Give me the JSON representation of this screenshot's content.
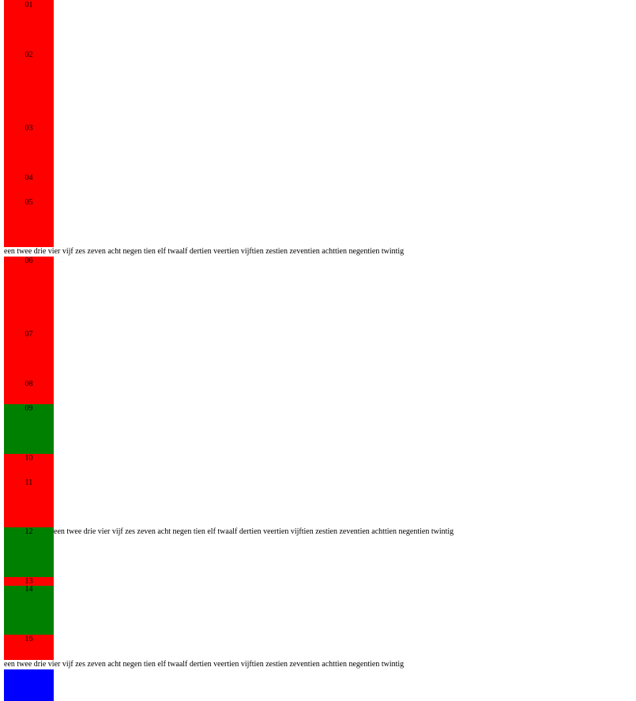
{
  "colors": {
    "red": "#ff0000",
    "green": "#008000",
    "blue": "#0000ff"
  },
  "blocks": [
    {
      "label": "01",
      "color": "red"
    },
    {
      "label": "02",
      "color": "red"
    },
    {
      "label": "03",
      "color": "red"
    },
    {
      "label": "04",
      "color": "red"
    },
    {
      "label": "05",
      "color": "red"
    },
    {
      "label": "06",
      "color": "red"
    },
    {
      "label": "07",
      "color": "red"
    },
    {
      "label": "08",
      "color": "red"
    },
    {
      "label": "09",
      "color": "green"
    },
    {
      "label": "10",
      "color": "red"
    },
    {
      "label": "11",
      "color": "red"
    },
    {
      "label": "12",
      "color": "green"
    },
    {
      "label": "13",
      "color": "red"
    },
    {
      "label": "14",
      "color": "green"
    },
    {
      "label": "16",
      "color": "red"
    },
    {
      "label": "",
      "color": "blue"
    }
  ],
  "text_lines": [
    "een twee drie vier vijf zes zeven acht negen tien elf twaalf dertien veertien vijftien zestien zeventien achttien negentien twintig",
    "een twee drie vier vijf zes zeven acht negen tien elf twaalf dertien veertien vijftien zestien zeventien achttien negentien twintig",
    "een twee drie vier vijf zes zeven acht negen tien elf twaalf dertien veertien vijftien zestien zeventien achttien negentien twintig"
  ]
}
